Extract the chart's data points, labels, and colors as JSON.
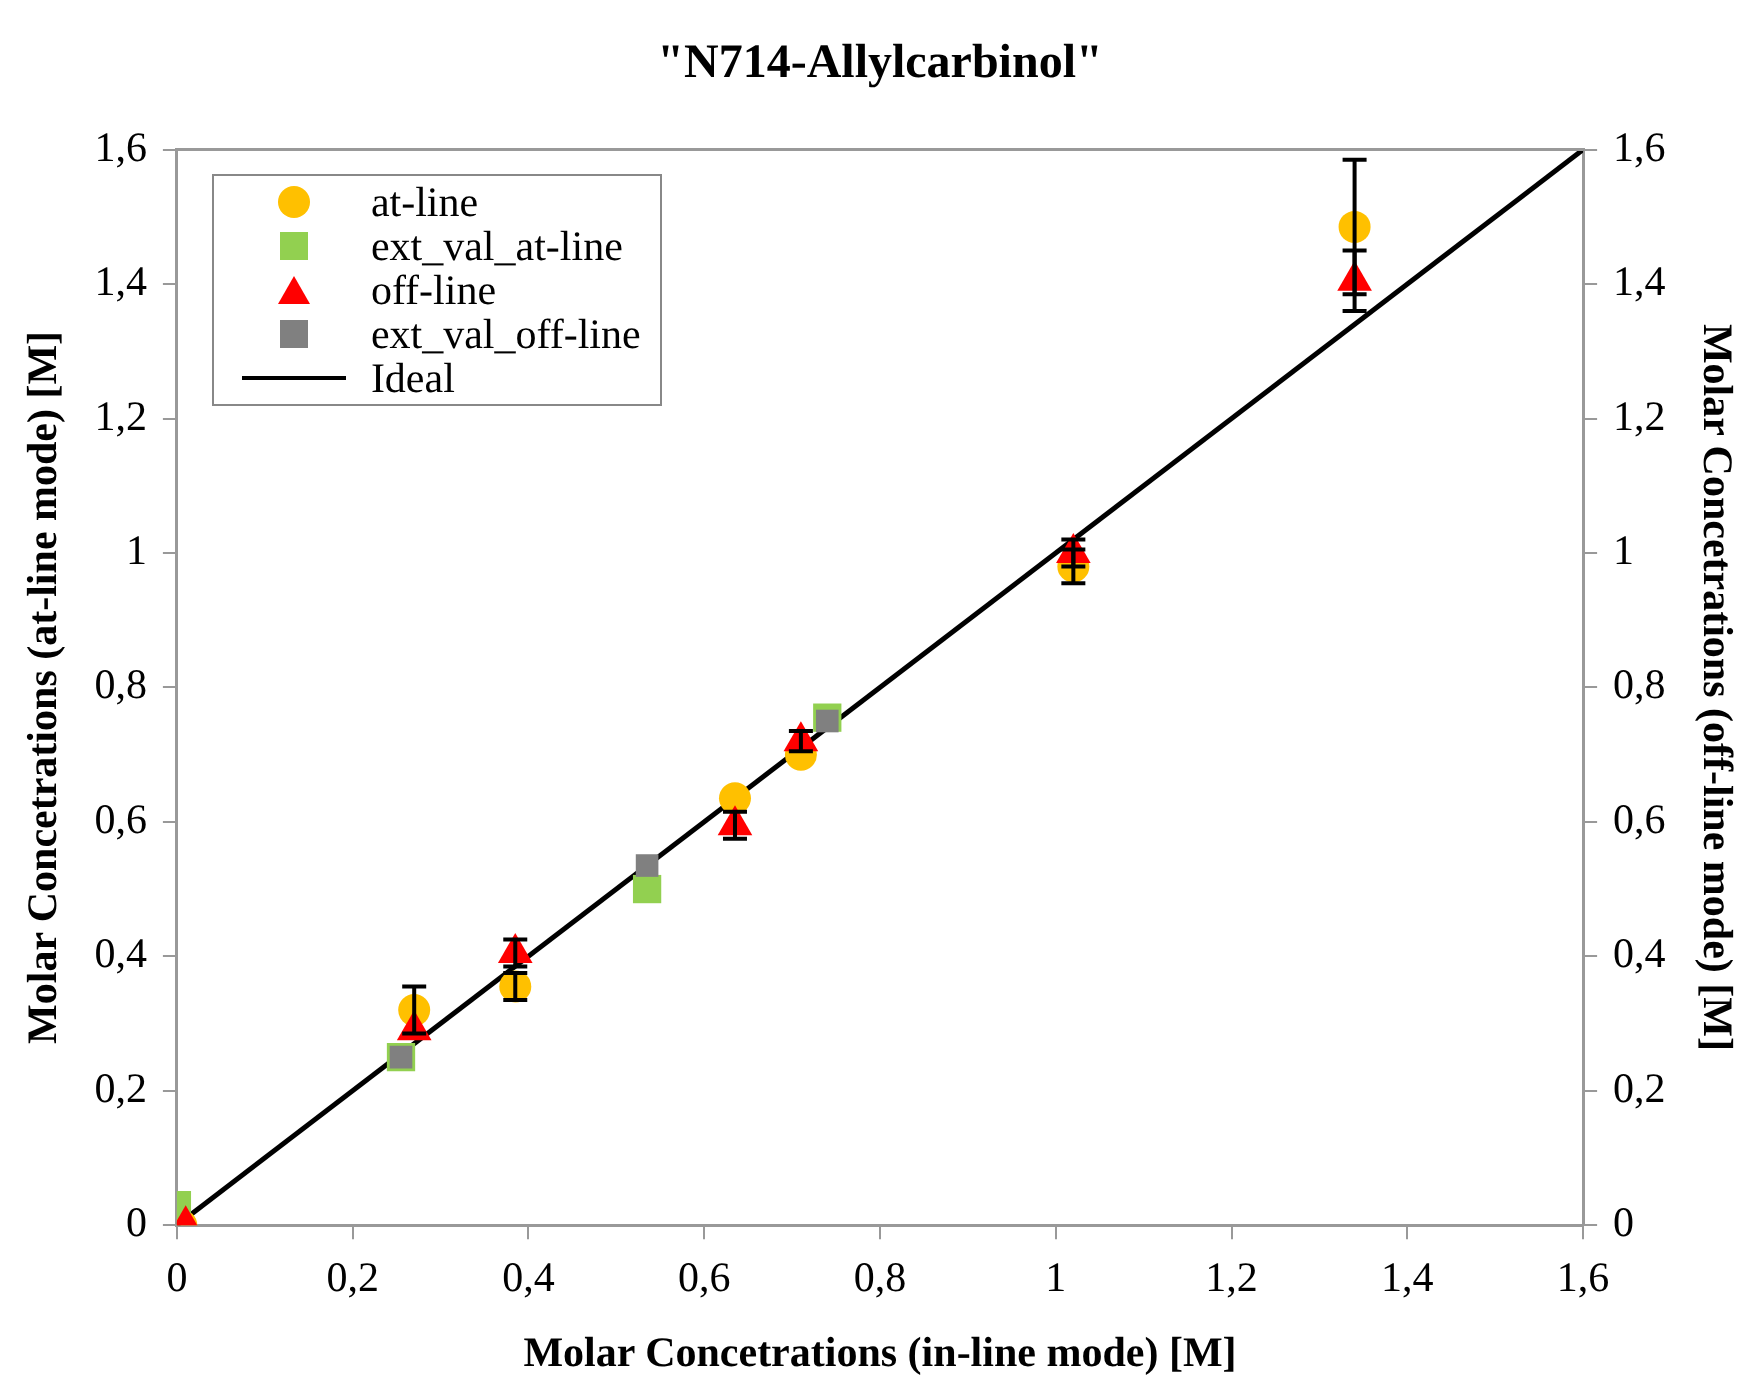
{
  "chart_data": {
    "type": "scatter",
    "title": "\"N714-Allylcarbinol\"",
    "xlabel": "Molar Concetrations (in-line mode) [M]",
    "ylabel": "Molar Concetrations (at-line mode) [M]",
    "y2label": "Molar Concetrations (off-line mode) [M]",
    "xlim": [
      0,
      1.6
    ],
    "ylim": [
      0,
      1.6
    ],
    "y2lim": [
      0,
      1.6
    ],
    "xticks": [
      0,
      {
        "value": 0.2,
        "label": "0,2"
      },
      {
        "value": 0.4,
        "label": "0,4"
      },
      {
        "value": 0.6,
        "label": "0,6"
      },
      {
        "value": 0.8,
        "label": "0,8"
      },
      1,
      {
        "value": 1.2,
        "label": "1,2"
      },
      {
        "value": 1.4,
        "label": "1,4"
      },
      {
        "value": 1.6,
        "label": "1,6"
      }
    ],
    "yticks": [
      0,
      {
        "value": 0.2,
        "label": "0,2"
      },
      {
        "value": 0.4,
        "label": "0,4"
      },
      {
        "value": 0.6,
        "label": "0,6"
      },
      {
        "value": 0.8,
        "label": "0,8"
      },
      1,
      {
        "value": 1.2,
        "label": "1,2"
      },
      {
        "value": 1.4,
        "label": "1,4"
      },
      {
        "value": 1.6,
        "label": "1,6"
      }
    ],
    "y2ticks": [
      0,
      {
        "value": 0.2,
        "label": "0,2"
      },
      {
        "value": 0.4,
        "label": "0,4"
      },
      {
        "value": 0.6,
        "label": "0,6"
      },
      {
        "value": 0.8,
        "label": "0,8"
      },
      1,
      {
        "value": 1.2,
        "label": "1,2"
      },
      {
        "value": 1.4,
        "label": "1,4"
      },
      {
        "value": 1.6,
        "label": "1,6"
      }
    ],
    "grid": false,
    "legend": "top left",
    "series": [
      {
        "name": "at-line",
        "color": "#ffc000",
        "marker": "circle",
        "x": [
          0.005,
          0.27,
          0.385,
          0.635,
          0.71,
          1.02,
          1.34
        ],
        "values": [
          0.0,
          0.32,
          0.355,
          0.635,
          0.7,
          0.98,
          1.485
        ],
        "errors": [
          null,
          0.035,
          0.02,
          null,
          null,
          0.025,
          0.1
        ]
      },
      {
        "name": "ext_val_at-line",
        "color": "#92d050",
        "marker": "square",
        "x": [
          0.0,
          0.255,
          0.535,
          0.74
        ],
        "values": [
          0.03,
          0.25,
          0.5,
          0.755
        ]
      },
      {
        "name": "off-line",
        "color": "#ff0000",
        "marker": "triangle",
        "x": [
          0.01,
          0.27,
          0.385,
          0.635,
          0.71,
          1.02,
          1.34
        ],
        "values": [
          0.0,
          0.29,
          0.405,
          0.595,
          0.72,
          1.0,
          1.405
        ],
        "errors": [
          null,
          null,
          0.02,
          0.02,
          0.015,
          0.02,
          0.045
        ]
      },
      {
        "name": "ext_val_off-line",
        "color": "#808080",
        "marker": "square",
        "x": [
          0.255,
          0.535,
          0.74
        ],
        "values": [
          0.25,
          0.535,
          0.75
        ]
      },
      {
        "name": "Ideal",
        "type": "line",
        "color": "#000000",
        "marker": "none",
        "x": [
          0,
          1.6
        ],
        "values": [
          0,
          1.6
        ]
      }
    ]
  }
}
